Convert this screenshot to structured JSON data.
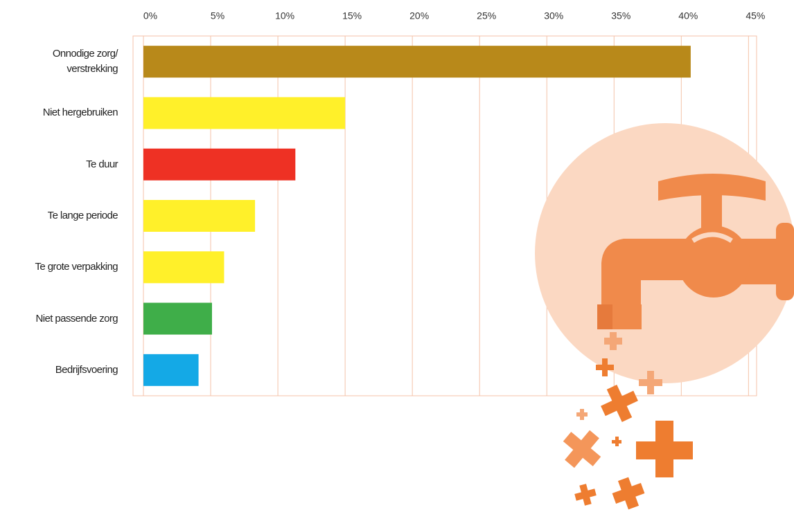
{
  "chart_data": {
    "type": "bar",
    "orientation": "horizontal",
    "categories": [
      "Onnodige zorg/\nverstrekking",
      "Niet hergebruiken",
      "Te duur",
      "Te lange periode",
      "Te grote verpakking",
      "Niet passende zorg",
      "Bedrijfsvoering"
    ],
    "values": [
      40.7,
      15,
      11.3,
      8.3,
      6,
      5.1,
      4.1
    ],
    "colors": [
      "#b8891a",
      "#fff02a",
      "#ee3124",
      "#fff02a",
      "#fff02a",
      "#3fae49",
      "#14a9e6"
    ],
    "xlim": [
      0,
      45.6
    ],
    "xticks": [
      {
        "value": 0,
        "label": "0%"
      },
      {
        "value": 5,
        "label": "5%"
      },
      {
        "value": 10,
        "label": "10%"
      },
      {
        "value": 15,
        "label": "15%"
      },
      {
        "value": 20,
        "label": "20%"
      },
      {
        "value": 25,
        "label": "25%"
      },
      {
        "value": 30,
        "label": "30%"
      },
      {
        "value": 35,
        "label": "35%"
      },
      {
        "value": 40,
        "label": "40%"
      },
      {
        "value": 45,
        "label": "45%"
      }
    ],
    "grid": true
  }
}
